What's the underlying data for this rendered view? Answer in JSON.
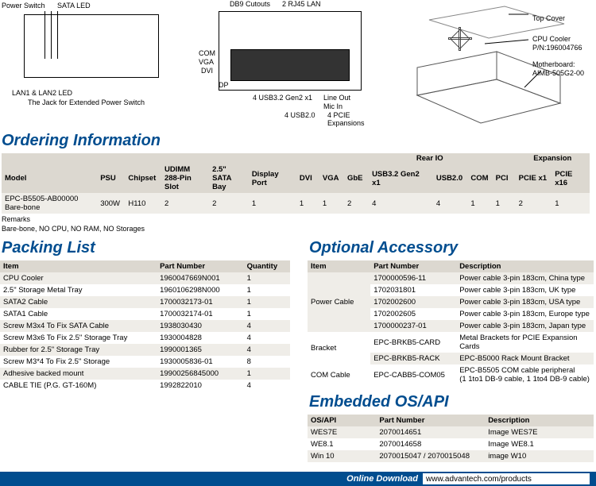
{
  "diagrams": {
    "left": {
      "labels": [
        "Power Switch",
        "SATA LED",
        "LAN1 & LAN2 LED",
        "The Jack for Extended Power Switch"
      ]
    },
    "center": {
      "top": [
        "DB9 Cutouts",
        "2 RJ45 LAN"
      ],
      "left": [
        "COM",
        "VGA",
        "DVI",
        "DP"
      ],
      "bottom": [
        "4 USB3.2 Gen2 x1",
        "4 USB2.0",
        "Line Out",
        "Mic In",
        "4 PCIE",
        "Expansions"
      ]
    },
    "right": {
      "labels": [
        "Top Cover",
        "CPU Cooler",
        "P/N:196004766",
        "Motherboard:",
        "AIMB-505G2-00"
      ]
    }
  },
  "ordering": {
    "title": "Ordering Information",
    "group_headers": {
      "rear": "Rear IO",
      "exp": "Expansion"
    },
    "columns": [
      "Model",
      "PSU",
      "Chipset",
      "UDIMM 288-Pin Slot",
      "2.5\" SATA Bay",
      "Display Port",
      "DVI",
      "VGA",
      "GbE",
      "USB3.2 Gen2 x1",
      "USB2.0",
      "COM",
      "PCI",
      "PCIE x1",
      "PCIE x16"
    ],
    "rows": [
      {
        "model": "EPC-B5505-AB00000 Bare-bone",
        "psu": "300W",
        "chipset": "H110",
        "udimm": "2",
        "bay": "2",
        "dp": "1",
        "dvi": "1",
        "vga": "1",
        "gbe": "2",
        "usb32": "4",
        "usb20": "4",
        "com": "1",
        "pci": "1",
        "pciex1": "2",
        "pciex16": "1"
      }
    ],
    "remarks_label": "Remarks",
    "remarks_text": "Bare-bone, NO CPU, NO RAM, NO Storages"
  },
  "packing": {
    "title": "Packing List",
    "columns": [
      "Item",
      "Part Number",
      "Quantity"
    ],
    "rows": [
      [
        "CPU Cooler",
        "1960047669N001",
        "1"
      ],
      [
        "2.5\" Storage Metal Tray",
        "1960106298N000",
        "1"
      ],
      [
        "SATA2 Cable",
        "1700032173-01",
        "1"
      ],
      [
        "SATA1 Cable",
        "1700032174-01",
        "1"
      ],
      [
        "Screw M3x4 To Fix SATA Cable",
        "1938030430",
        "4"
      ],
      [
        "Screw M3x6 To Fix 2.5\" Storage Tray",
        "1930004828",
        "4"
      ],
      [
        "Rubber for 2.5\" Storage Tray",
        "1990001365",
        "4"
      ],
      [
        "Screw M3*4 To Fix 2.5\" Storage",
        "1930005836-01",
        "8"
      ],
      [
        "Adhesive backed mount",
        "19900256845000",
        "1"
      ],
      [
        "CABLE TIE (P.G. GT-160M)",
        "1992822010",
        "4"
      ]
    ]
  },
  "optional": {
    "title": "Optional Accessory",
    "columns": [
      "Item",
      "Part Number",
      "Description"
    ],
    "groups": [
      {
        "item": "Power Cable",
        "rows": [
          [
            "1700000596-11",
            "Power cable 3-pin 183cm, China type"
          ],
          [
            "1702031801",
            "Power cable 3-pin 183cm, UK type"
          ],
          [
            "1702002600",
            "Power cable 3-pin 183cm, USA type"
          ],
          [
            "1702002605",
            "Power cable 3-pin 183cm, Europe type"
          ],
          [
            "1700000237-01",
            "Power cable 3-pin 183cm, Japan type"
          ]
        ]
      },
      {
        "item": "Bracket",
        "rows": [
          [
            "EPC-BRKB5-CARD",
            "Metal Brackets for PCIE Expansion Cards"
          ],
          [
            "EPC-BRKB5-RACK",
            "EPC-B5000 Rack Mount Bracket"
          ]
        ]
      },
      {
        "item": "COM Cable",
        "rows": [
          [
            "EPC-CABB5-COM05",
            "EPC-B5505 COM cable peripheral\n(1 1to1 DB-9 cable, 1 1to4 DB-9 cable)"
          ]
        ]
      }
    ]
  },
  "os": {
    "title": "Embedded OS/API",
    "columns": [
      "OS/API",
      "Part Number",
      "Description"
    ],
    "rows": [
      [
        "WES7E",
        "2070014651",
        "Image WES7E"
      ],
      [
        "WE8.1",
        "2070014658",
        "Image WE8.1"
      ],
      [
        "Win 10",
        "2070015047 / 2070015048",
        "image W10"
      ]
    ]
  },
  "footer": {
    "label": "Online Download",
    "url": "www.advantech.com/products"
  },
  "colors": {
    "brand": "#004d8f",
    "th_bg": "#dcd8d0",
    "alt_bg": "#efede8"
  }
}
